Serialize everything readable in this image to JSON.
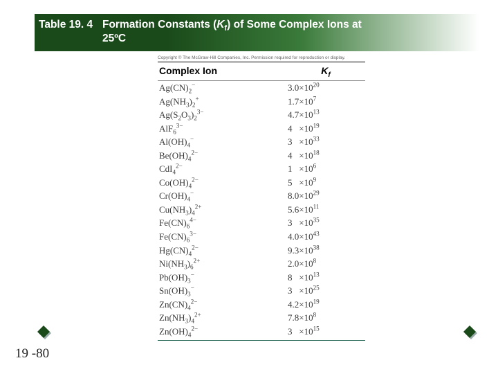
{
  "title": {
    "prefix": "Table 19. 4",
    "line1_rest": "Formation Constants (",
    "kvar": "K",
    "ksub": "f",
    "line1_after": ") of Some Complex Ions at",
    "line2": "25ºC"
  },
  "copyright": "Copyright © The McGraw-Hill Companies, Inc. Permission required for reproduction or display.",
  "headers": {
    "col1": "Complex Ion",
    "col2_var": "K",
    "col2_sub": "f"
  },
  "rows": [
    {
      "ion_html": "Ag(CN)<sub>2</sub><sup>−</sup>",
      "kf_html": "3.0×10<sup>20</sup>"
    },
    {
      "ion_html": "Ag(NH<sub>3</sub>)<sub>2</sub><sup>+</sup>",
      "kf_html": "1.7×10<sup>7</sup>"
    },
    {
      "ion_html": "Ag(S<sub>2</sub>O<sub>3</sub>)<sub>2</sub><sup>3−</sup>",
      "kf_html": "4.7×10<sup>13</sup>"
    },
    {
      "ion_html": "AlF<sub>6</sub><sup>3−</sup>",
      "kf_html": "4&nbsp;&nbsp;&nbsp;×10<sup>19</sup>"
    },
    {
      "ion_html": "Al(OH)<sub>4</sub><sup>−</sup>",
      "kf_html": "3&nbsp;&nbsp;&nbsp;×10<sup>33</sup>"
    },
    {
      "ion_html": "Be(OH)<sub>4</sub><sup>2−</sup>",
      "kf_html": "4&nbsp;&nbsp;&nbsp;×10<sup>18</sup>"
    },
    {
      "ion_html": "CdI<sub>4</sub><sup>2−</sup>",
      "kf_html": "1&nbsp;&nbsp;&nbsp;×10<sup>6</sup>"
    },
    {
      "ion_html": "Co(OH)<sub>4</sub><sup>2−</sup>",
      "kf_html": "5&nbsp;&nbsp;&nbsp;×10<sup>9</sup>"
    },
    {
      "ion_html": "Cr(OH)<sub>4</sub><sup>−</sup>",
      "kf_html": "8.0×10<sup>29</sup>"
    },
    {
      "ion_html": "Cu(NH<sub>3</sub>)<sub>4</sub><sup>2+</sup>",
      "kf_html": "5.6×10<sup>11</sup>"
    },
    {
      "ion_html": "Fe(CN)<sub>6</sub><sup>4−</sup>",
      "kf_html": "3&nbsp;&nbsp;&nbsp;×10<sup>35</sup>"
    },
    {
      "ion_html": "Fe(CN)<sub>6</sub><sup>3−</sup>",
      "kf_html": "4.0×10<sup>43</sup>"
    },
    {
      "ion_html": "Hg(CN)<sub>4</sub><sup>2−</sup>",
      "kf_html": "9.3×10<sup>38</sup>"
    },
    {
      "ion_html": "Ni(NH<sub>3</sub>)<sub>6</sub><sup>2+</sup>",
      "kf_html": "2.0×10<sup>8</sup>"
    },
    {
      "ion_html": "Pb(OH)<sub>3</sub><sup>−</sup>",
      "kf_html": "8&nbsp;&nbsp;&nbsp;×10<sup>13</sup>"
    },
    {
      "ion_html": "Sn(OH)<sub>3</sub><sup>−</sup>",
      "kf_html": "3&nbsp;&nbsp;&nbsp;×10<sup>25</sup>"
    },
    {
      "ion_html": "Zn(CN)<sub>4</sub><sup>2−</sup>",
      "kf_html": "4.2×10<sup>19</sup>"
    },
    {
      "ion_html": "Zn(NH<sub>3</sub>)<sub>4</sub><sup>2+</sup>",
      "kf_html": "7.8×10<sup>8</sup>"
    },
    {
      "ion_html": "Zn(OH)<sub>4</sub><sup>2−</sup>",
      "kf_html": "3&nbsp;&nbsp;&nbsp;×10<sup>15</sup>"
    }
  ],
  "page_number": "19 -80",
  "deco_colors": {
    "fill": "#1a4a1a",
    "shadow": "#9aa"
  }
}
